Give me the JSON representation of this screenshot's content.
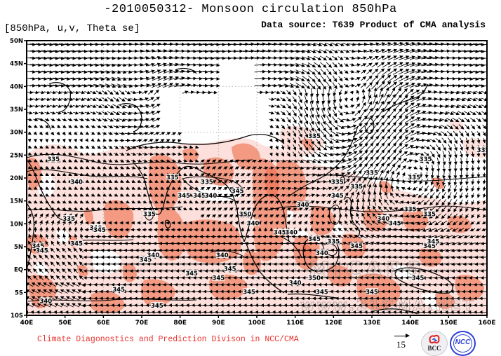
{
  "header": {
    "title": "-2010050312- Monsoon circulation 850hPa",
    "subtitle_left": "[850hPa, u,v, Theta se]",
    "subtitle_right": "Data source: T639 Product of CMA analysis"
  },
  "footer": {
    "credit": "Climate Diagonostics and Prediction Divison in NCC/CMA",
    "reference_vector_value": "15",
    "reference_vector_icon": "right-arrow-icon",
    "logos": [
      {
        "name": "BCC",
        "label": "BCC"
      },
      {
        "name": "NCC",
        "label": "NCC"
      }
    ]
  },
  "map": {
    "projection": "cylindrical-equidistant",
    "lon_range": [
      40,
      160
    ],
    "lat_range": [
      -10,
      50
    ],
    "x_ticks": [
      "40E",
      "50E",
      "60E",
      "70E",
      "80E",
      "90E",
      "100E",
      "110E",
      "120E",
      "130E",
      "140E",
      "150E",
      "160E"
    ],
    "y_ticks": [
      "50N",
      "45N",
      "40N",
      "35N",
      "30N",
      "25N",
      "20N",
      "15N",
      "10N",
      "5N",
      "EQ",
      "5S",
      "10S"
    ],
    "fields": [
      "850hPa wind vectors (u,v)",
      "Theta se contours",
      "Theta se shading >=340K, >=345K"
    ],
    "shading_levels": [
      {
        "threshold": 340,
        "color": "#fde0dc"
      },
      {
        "threshold": 345,
        "color": "#f59a82"
      }
    ],
    "contour_labels": [
      {
        "text": "335",
        "lon": 47,
        "lat": 24
      },
      {
        "text": "340",
        "lon": 53,
        "lat": 19
      },
      {
        "text": "335",
        "lon": 51,
        "lat": 11
      },
      {
        "text": "340",
        "lon": 58,
        "lat": 9
      },
      {
        "text": "345",
        "lon": 59,
        "lat": 8.5
      },
      {
        "text": "345",
        "lon": 43,
        "lat": 5
      },
      {
        "text": "345",
        "lon": 53,
        "lat": 5.5
      },
      {
        "text": "345",
        "lon": 44,
        "lat": 4
      },
      {
        "text": "340",
        "lon": 45,
        "lat": -7
      },
      {
        "text": "345",
        "lon": 64,
        "lat": -4.5
      },
      {
        "text": "345",
        "lon": 74,
        "lat": -8
      },
      {
        "text": "335",
        "lon": 72,
        "lat": 12
      },
      {
        "text": "345",
        "lon": 71,
        "lat": 2
      },
      {
        "text": "340",
        "lon": 73,
        "lat": 3
      },
      {
        "text": "335",
        "lon": 78,
        "lat": 20
      },
      {
        "text": "345",
        "lon": 81,
        "lat": 16
      },
      {
        "text": "345",
        "lon": 85,
        "lat": 16
      },
      {
        "text": "340",
        "lon": 88,
        "lat": 16
      },
      {
        "text": "335",
        "lon": 87,
        "lat": 19
      },
      {
        "text": "345",
        "lon": 95,
        "lat": 17
      },
      {
        "text": "345",
        "lon": 83,
        "lat": -1
      },
      {
        "text": "345",
        "lon": 90,
        "lat": -2
      },
      {
        "text": "345",
        "lon": 93,
        "lat": 0
      },
      {
        "text": "340",
        "lon": 91,
        "lat": 3
      },
      {
        "text": "350",
        "lon": 97,
        "lat": 12
      },
      {
        "text": "345",
        "lon": 98,
        "lat": -5
      },
      {
        "text": "340",
        "lon": 99,
        "lat": 10
      },
      {
        "text": "345",
        "lon": 106,
        "lat": 8
      },
      {
        "text": "340",
        "lon": 109,
        "lat": 8
      },
      {
        "text": "340",
        "lon": 112,
        "lat": 14
      },
      {
        "text": "345",
        "lon": 121,
        "lat": 16
      },
      {
        "text": "335",
        "lon": 121,
        "lat": 19
      },
      {
        "text": "340",
        "lon": 117,
        "lat": 3.5
      },
      {
        "text": "345",
        "lon": 115,
        "lat": 6.5
      },
      {
        "text": "335",
        "lon": 120,
        "lat": 6
      },
      {
        "text": "350",
        "lon": 115,
        "lat": -2
      },
      {
        "text": "340",
        "lon": 110,
        "lat": -3
      },
      {
        "text": "345",
        "lon": 126,
        "lat": 5
      },
      {
        "text": "345",
        "lon": 130,
        "lat": -5
      },
      {
        "text": "335",
        "lon": 126,
        "lat": 18
      },
      {
        "text": "335",
        "lon": 115,
        "lat": 29
      },
      {
        "text": "335",
        "lon": 130,
        "lat": 21
      },
      {
        "text": "335",
        "lon": 140,
        "lat": 13
      },
      {
        "text": "340",
        "lon": 133,
        "lat": 11
      },
      {
        "text": "345",
        "lon": 136,
        "lat": 10
      },
      {
        "text": "335",
        "lon": 145,
        "lat": 12
      },
      {
        "text": "345",
        "lon": 145,
        "lat": 5
      },
      {
        "text": "345",
        "lon": 146,
        "lat": 6
      },
      {
        "text": "335",
        "lon": 141,
        "lat": 20
      },
      {
        "text": "335",
        "lon": 144,
        "lat": 24
      },
      {
        "text": "345",
        "lon": 142,
        "lat": -2
      },
      {
        "text": "335",
        "lon": 159,
        "lat": 26
      },
      {
        "text": "345",
        "lon": 117,
        "lat": -5
      }
    ],
    "watermark": {
      "line1": "MICAPS",
      "line2": "www.21CMA.NET"
    }
  }
}
